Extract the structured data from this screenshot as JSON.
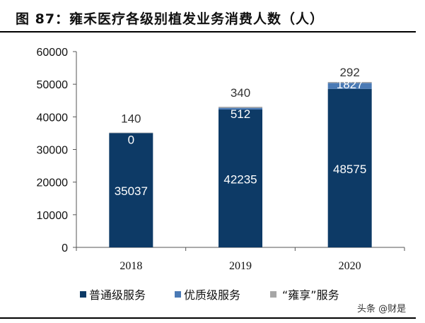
{
  "title": "图 87：雍禾医疗各级别植发业务消费人数（人）",
  "watermark": "头条 @财是",
  "chart_data": {
    "type": "bar",
    "stacked": true,
    "title": "图 87：雍禾医疗各级别植发业务消费人数（人）",
    "categories": [
      "2018",
      "2019",
      "2020"
    ],
    "series": [
      {
        "name": "普通级服务",
        "values": [
          35037,
          42235,
          48575
        ],
        "color": "#0d3a66"
      },
      {
        "name": "优质级服务",
        "values": [
          0,
          512,
          1827
        ],
        "color": "#4a7ab5"
      },
      {
        "name": "“雍享”服务",
        "values": [
          140,
          340,
          292
        ],
        "color": "#a6a6a6"
      }
    ],
    "ylim": [
      0,
      60000
    ],
    "yticks": [
      0,
      10000,
      20000,
      30000,
      40000,
      50000,
      60000
    ],
    "grid": false,
    "legend": "bottom"
  }
}
